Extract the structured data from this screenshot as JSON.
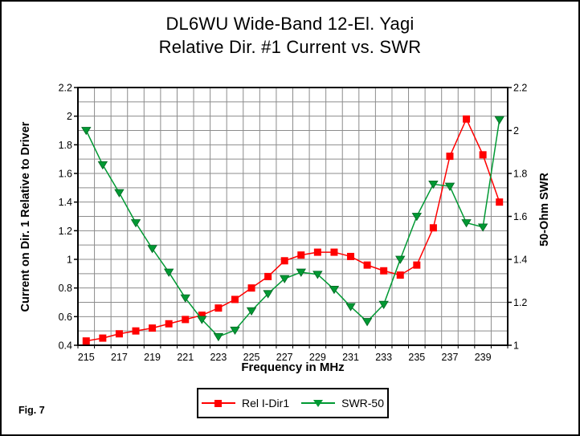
{
  "figure_label": "Fig. 7",
  "title": {
    "line1": "DL6WU Wide-Band 12-El. Yagi",
    "line2": "Relative Dir. #1 Current vs. SWR"
  },
  "chart_data": {
    "type": "line",
    "x": [
      215,
      216,
      217,
      218,
      219,
      220,
      221,
      222,
      223,
      224,
      225,
      226,
      227,
      228,
      229,
      230,
      231,
      232,
      233,
      234,
      235,
      236,
      237,
      238,
      239,
      240
    ],
    "series": [
      {
        "name": "Rel I-Dir1",
        "axis": "left",
        "color": "#ff0000",
        "marker": "square",
        "values": [
          0.43,
          0.45,
          0.48,
          0.5,
          0.52,
          0.55,
          0.58,
          0.61,
          0.66,
          0.72,
          0.8,
          0.88,
          0.99,
          1.03,
          1.05,
          1.05,
          1.02,
          0.96,
          0.92,
          0.89,
          0.96,
          1.22,
          1.72,
          1.98,
          1.73,
          1.4
        ]
      },
      {
        "name": "SWR-50",
        "axis": "right",
        "color": "#009933",
        "marker": "triangle-down",
        "values": [
          2.0,
          1.84,
          1.71,
          1.57,
          1.45,
          1.34,
          1.22,
          1.12,
          1.04,
          1.07,
          1.16,
          1.24,
          1.31,
          1.34,
          1.33,
          1.26,
          1.18,
          1.11,
          1.19,
          1.4,
          1.6,
          1.75,
          1.74,
          1.57,
          1.55,
          2.05
        ]
      }
    ],
    "xlabel": "Frequency in MHz",
    "x_tick_labels": [
      "215",
      "217",
      "219",
      "221",
      "223",
      "225",
      "227",
      "229",
      "231",
      "233",
      "235",
      "237",
      "239"
    ],
    "x_tick_values": [
      215,
      217,
      219,
      221,
      223,
      225,
      227,
      229,
      231,
      233,
      235,
      237,
      239
    ],
    "left_axis": {
      "label": "Current on Dir. 1 Relative to Driver",
      "min": 0.4,
      "max": 2.2,
      "tick_labels": [
        "2.2",
        "2",
        "1.8",
        "1.6",
        "1.4",
        "1.2",
        "1",
        "0.8",
        "0.6",
        "0.4"
      ],
      "tick_values": [
        2.2,
        2.0,
        1.8,
        1.6,
        1.4,
        1.2,
        1.0,
        0.8,
        0.6,
        0.4
      ],
      "grid_step": 0.1
    },
    "right_axis": {
      "label": "50-Ohm SWR",
      "min": 1.0,
      "max": 2.2,
      "tick_labels": [
        "2.2",
        "2",
        "1.8",
        "1.6",
        "1.4",
        "1.2",
        "1"
      ],
      "tick_values": [
        2.2,
        2.0,
        1.8,
        1.6,
        1.4,
        1.2,
        1.0
      ]
    },
    "grid": true,
    "legend_position": "bottom-center",
    "colors": {
      "grid": "#8c8c8c",
      "axis_frame": "#000000",
      "background": "#ffffff",
      "text": "#000000",
      "series_red": "#ff0000",
      "series_green": "#009933"
    }
  }
}
